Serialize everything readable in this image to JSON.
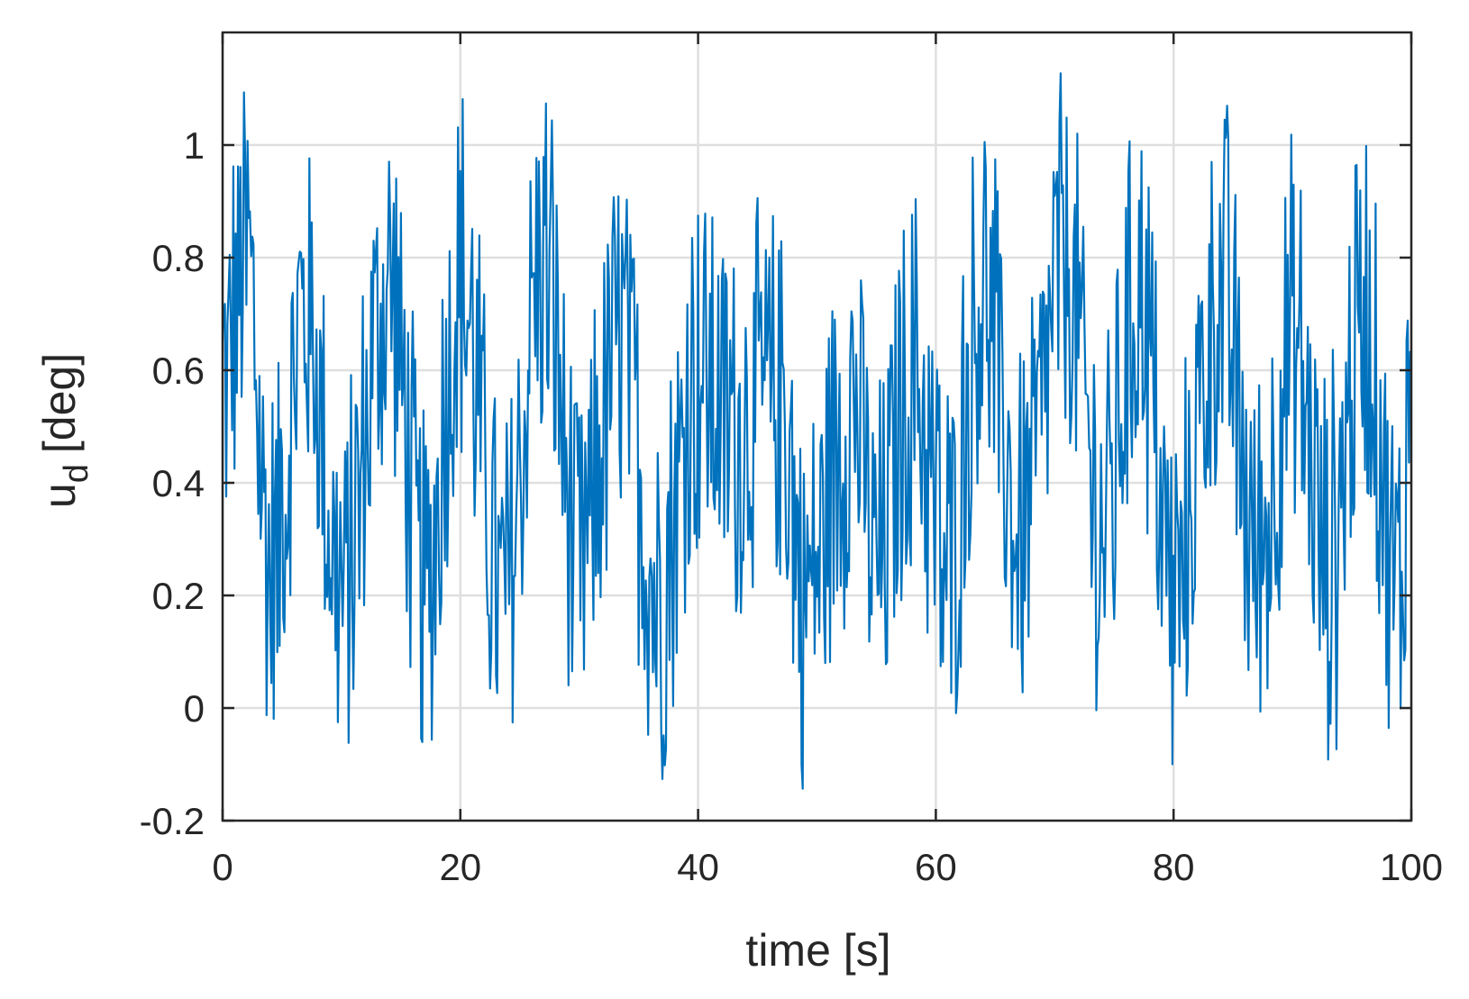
{
  "chart_data": {
    "type": "line",
    "title": "",
    "xlabel": "time [s]",
    "ylabel": {
      "base": "u",
      "subscript": "d",
      "unit": "[deg]"
    },
    "xlim": [
      0,
      100
    ],
    "ylim": [
      -0.2,
      1.2
    ],
    "xticks": [
      0,
      20,
      40,
      60,
      80,
      100
    ],
    "xtick_labels": [
      "0",
      "20",
      "40",
      "60",
      "80",
      "100"
    ],
    "yticks": [
      -0.2,
      0,
      0.2,
      0.4,
      0.6,
      0.8,
      1
    ],
    "ytick_labels": [
      "-0.2",
      "0",
      "0.2",
      "0.4",
      "0.6",
      "0.8",
      "1"
    ],
    "grid": true,
    "legend": "none",
    "series": [
      {
        "color": "#0072BD",
        "x_start": 0,
        "x_step": 0.1,
        "envelope": {
          "x": [
            0,
            2,
            4,
            7,
            10,
            14,
            17,
            20,
            23.5,
            27,
            30,
            33.5,
            36.5,
            40,
            43,
            47,
            49,
            53,
            55,
            58,
            61,
            64,
            67,
            71,
            74,
            77,
            80,
            84,
            87,
            90,
            93,
            96,
            99,
            100
          ],
          "y": [
            0.55,
            0.8,
            0.25,
            0.7,
            0.2,
            0.75,
            0.2,
            0.75,
            0.2,
            0.8,
            0.25,
            0.65,
            0.2,
            0.6,
            0.5,
            0.55,
            0.2,
            0.55,
            0.25,
            0.6,
            0.25,
            0.75,
            0.3,
            0.8,
            0.3,
            0.75,
            0.2,
            0.75,
            0.25,
            0.65,
            0.25,
            0.7,
            0.2,
            0.6
          ]
        },
        "amplitude": 0.33,
        "min": -0.19,
        "max": 1.18
      }
    ]
  },
  "colors": {
    "line": "#0072BD",
    "axis": "#262626",
    "grid": "#dfdfdf"
  }
}
